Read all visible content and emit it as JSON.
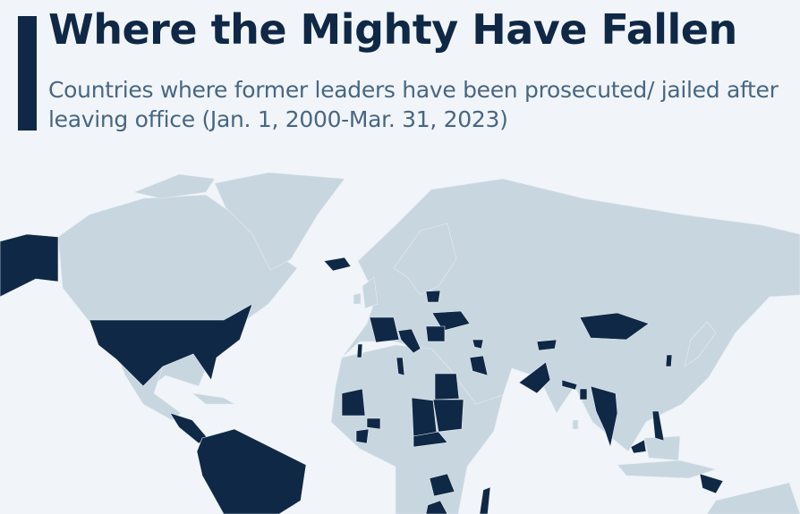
{
  "header": {
    "title": "Where the Mighty Have Fallen",
    "subtitle": "Countries where former leaders have been prosecuted/ jailed after leaving office (Jan. 1, 2000-Mar. 31, 2023)"
  },
  "map": {
    "colors": {
      "background": "#f1f5f9",
      "land": "#c8d6df",
      "highlighted": "#0f2846",
      "border": "#e6edf2"
    },
    "highlighted_countries": [
      "United States",
      "Iceland",
      "Central America",
      "South America",
      "France",
      "Portugal",
      "Italy",
      "Croatia",
      "Lithuania",
      "Ukraine",
      "Romania",
      "Georgia",
      "Tunisia",
      "Egypt",
      "Sudan",
      "Chad",
      "Central African Republic",
      "Mauritania",
      "Burkina Faso",
      "Ivory Coast",
      "Iraq",
      "Pakistan",
      "Kyrgyzstan",
      "Mongolia",
      "South Korea",
      "Nepal",
      "Bangladesh",
      "Myanmar",
      "Thailand",
      "Malaysia",
      "Philippines",
      "Taiwan",
      "Zambia",
      "Malawi",
      "Madagascar",
      "Zimbabwe",
      "Papua New Guinea"
    ]
  }
}
